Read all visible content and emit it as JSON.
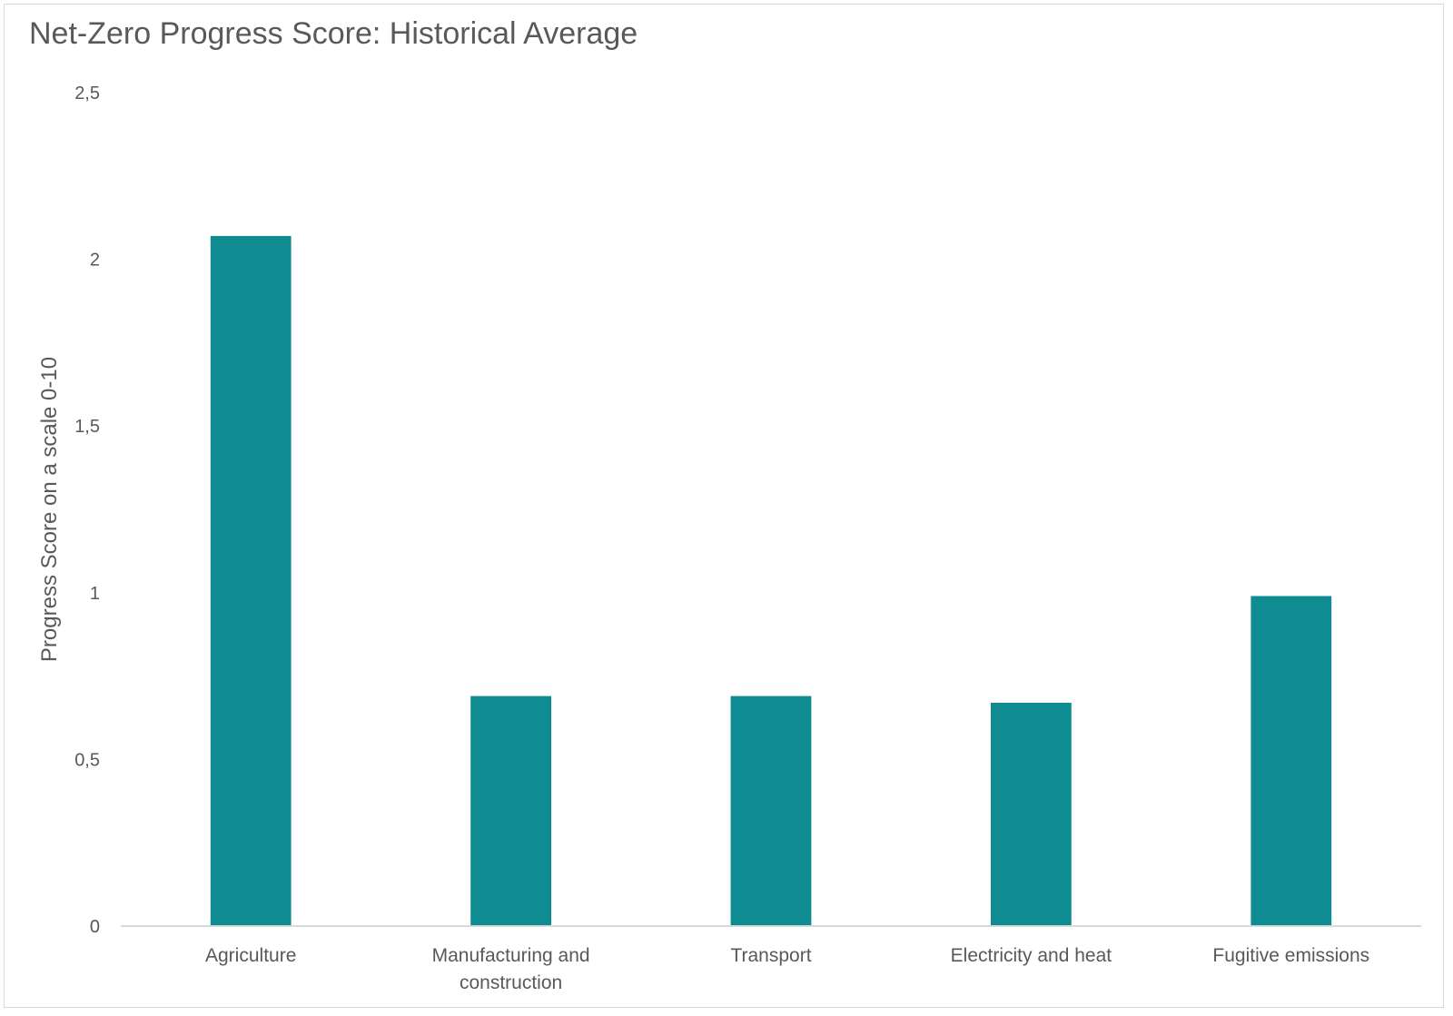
{
  "chart_data": {
    "type": "bar",
    "title": "Net-Zero Progress Score: Historical Average",
    "xlabel": "",
    "ylabel": "Progress Score on a scale 0-10",
    "ylim": [
      0,
      2.5
    ],
    "yticks": [
      0,
      0.5,
      1,
      1.5,
      2,
      2.5
    ],
    "ytick_labels": [
      "0",
      "0,5",
      "1",
      "1,5",
      "2",
      "2,5"
    ],
    "categories": [
      [
        "Agriculture"
      ],
      [
        "Manufacturing and",
        "construction"
      ],
      [
        "Transport"
      ],
      [
        "Electricity and heat"
      ],
      [
        "Fugitive emissions"
      ]
    ],
    "values": [
      2.07,
      0.69,
      0.69,
      0.67,
      0.99
    ],
    "grid": false,
    "legend": "none",
    "colors": {
      "bar": "#0e8c91",
      "axis": "#d9d9d9",
      "text": "#595959"
    }
  }
}
